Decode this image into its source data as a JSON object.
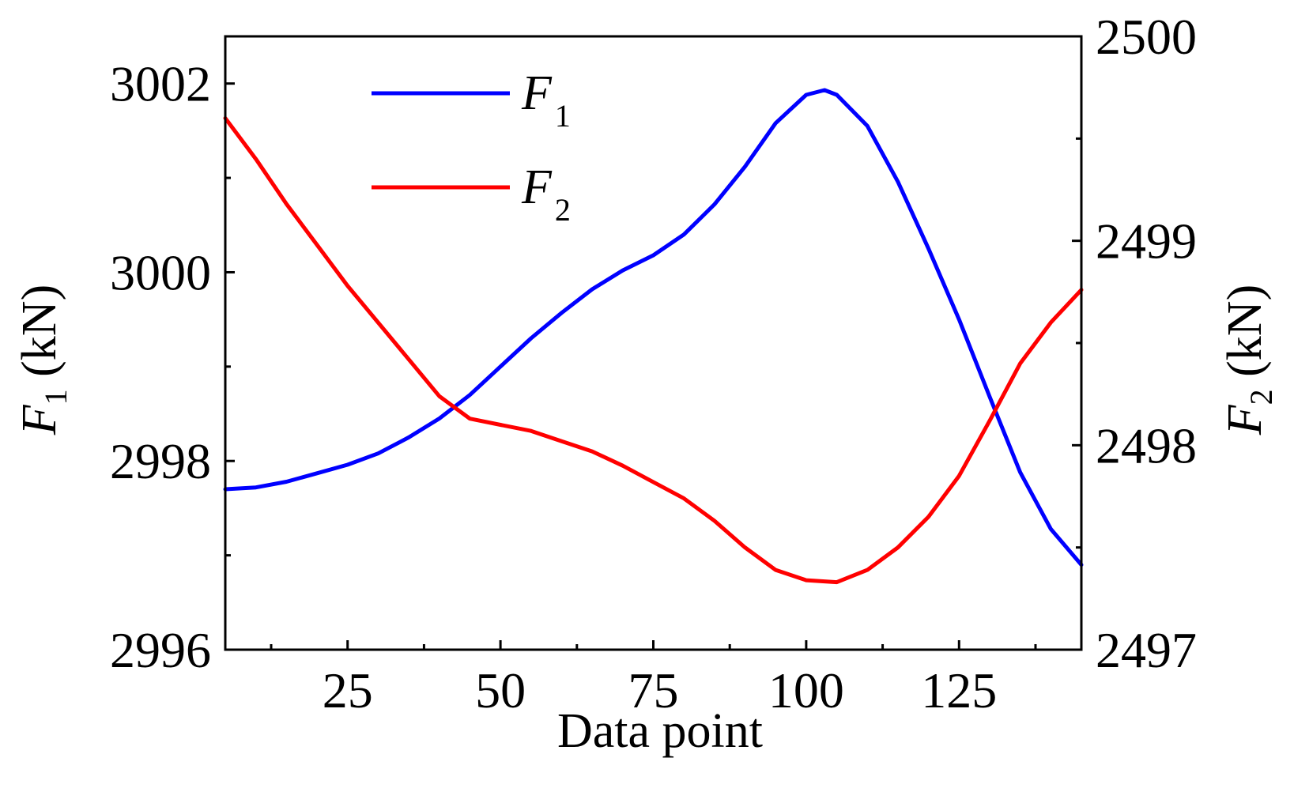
{
  "chart_data": {
    "type": "line",
    "xlabel": "Data point",
    "ylabel_left": {
      "symbol": "F",
      "subscript": "1",
      "unit": " (kN)"
    },
    "ylabel_right": {
      "symbol": "F",
      "subscript": "2",
      "unit": " (kN)"
    },
    "xlim": [
      5,
      145
    ],
    "ylim_left": [
      2996,
      3002.5
    ],
    "ylim_right": [
      2497,
      2500
    ],
    "x_ticks": [
      25,
      50,
      75,
      100,
      125
    ],
    "y_left_ticks": [
      2996,
      2998,
      3000,
      3002
    ],
    "y_right_ticks": [
      2497,
      2498,
      2499,
      2500
    ],
    "legend_placement": "top-left",
    "grid": false,
    "series": [
      {
        "name": "F1",
        "label_symbol": "F",
        "label_subscript": "1",
        "axis": "left",
        "color": "#0000ff",
        "x": [
          5,
          10,
          15,
          20,
          25,
          30,
          35,
          40,
          45,
          50,
          55,
          60,
          65,
          70,
          75,
          80,
          85,
          90,
          95,
          100,
          103,
          105,
          110,
          115,
          120,
          125,
          130,
          135,
          140,
          145
        ],
        "y": [
          2997.7,
          2997.72,
          2997.78,
          2997.87,
          2997.96,
          2998.08,
          2998.25,
          2998.45,
          2998.7,
          2999.0,
          2999.3,
          2999.57,
          2999.82,
          3000.02,
          3000.18,
          3000.4,
          3000.72,
          3001.12,
          3001.58,
          3001.88,
          3001.93,
          3001.88,
          3001.55,
          3000.96,
          3000.25,
          2999.5,
          2998.68,
          2997.88,
          2997.28,
          2996.9
        ]
      },
      {
        "name": "F2",
        "label_symbol": "F",
        "label_subscript": "2",
        "axis": "right",
        "color": "#ff0000",
        "x": [
          5,
          10,
          15,
          20,
          25,
          30,
          35,
          40,
          45,
          50,
          55,
          60,
          65,
          70,
          75,
          80,
          85,
          90,
          95,
          100,
          105,
          110,
          115,
          120,
          125,
          130,
          135,
          140,
          145
        ],
        "y": [
          2499.6,
          2499.4,
          2499.18,
          2498.98,
          2498.78,
          2498.6,
          2498.42,
          2498.24,
          2498.13,
          2498.1,
          2498.07,
          2498.02,
          2497.97,
          2497.9,
          2497.82,
          2497.74,
          2497.63,
          2497.5,
          2497.39,
          2497.34,
          2497.33,
          2497.39,
          2497.5,
          2497.65,
          2497.85,
          2498.12,
          2498.4,
          2498.6,
          2498.76
        ]
      }
    ]
  }
}
